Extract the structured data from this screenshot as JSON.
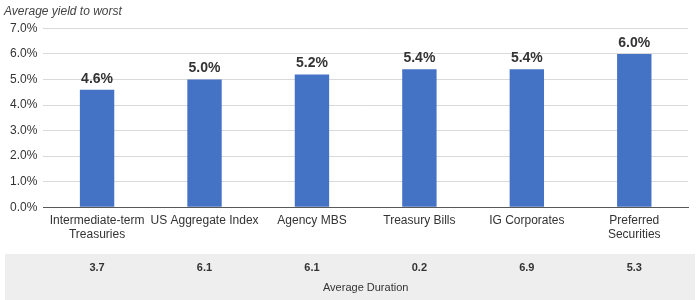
{
  "chart_data": {
    "type": "bar",
    "ylabel": "Average yield to worst",
    "categories": [
      "Intermediate-term Treasuries",
      "US Aggregate Index",
      "Agency MBS",
      "Treasury Bills",
      "IG Corporates",
      "Preferred Securities"
    ],
    "values": [
      4.6,
      5.0,
      5.2,
      5.4,
      5.4,
      6.0
    ],
    "value_labels": [
      "4.6%",
      "5.0%",
      "5.2%",
      "5.4%",
      "5.4%",
      "6.0%"
    ],
    "duration": [
      3.7,
      6.1,
      6.1,
      0.2,
      6.9,
      5.3
    ],
    "duration_title": "Average Duration",
    "color": "#4472c4",
    "ylim": [
      0,
      7
    ],
    "yticks": [
      {
        "value": 0,
        "label": "0.0%"
      },
      {
        "value": 1,
        "label": "1.0%"
      },
      {
        "value": 2,
        "label": "2.0%"
      },
      {
        "value": 3,
        "label": "3.0%"
      },
      {
        "value": 4,
        "label": "4.0%"
      },
      {
        "value": 5,
        "label": "5.0%"
      },
      {
        "value": 6,
        "label": "6.0%"
      },
      {
        "value": 7,
        "label": "7.0%"
      }
    ],
    "grid": true,
    "data_labels": true
  }
}
